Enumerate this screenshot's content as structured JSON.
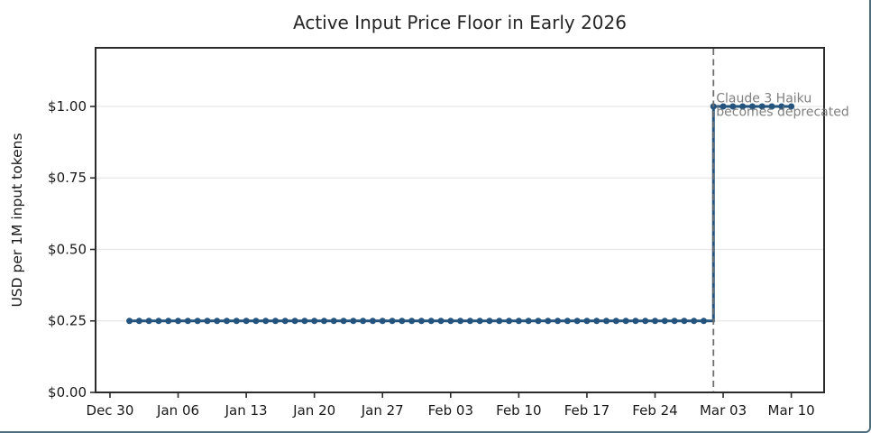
{
  "chart_data": {
    "type": "line",
    "subtype": "step-post",
    "title": "Active Input Price Floor in Early 2026",
    "xlabel": "",
    "ylabel": "USD per 1M input tokens",
    "grid": "horizontal-only",
    "legend": "none",
    "x_axis": {
      "day_zero_label": "Dec 30",
      "tick_days": [
        0,
        7,
        14,
        21,
        28,
        35,
        42,
        49,
        56,
        63,
        70
      ],
      "tick_labels": [
        "Dec 30",
        "Jan 06",
        "Jan 13",
        "Jan 20",
        "Jan 27",
        "Feb 03",
        "Feb 10",
        "Feb 17",
        "Feb 24",
        "Mar 03",
        "Mar 10"
      ],
      "xlim_days": [
        -1.48,
        73.37
      ]
    },
    "y_axis": {
      "tick_values": [
        0,
        0.25,
        0.5,
        0.75,
        1.0
      ],
      "tick_labels": [
        "$0.00",
        "$0.25",
        "$0.50",
        "$0.75",
        "$1.00"
      ],
      "ylim": [
        0,
        1.205
      ]
    },
    "series": [
      {
        "name": "active-input-price-floor",
        "frequency": "daily",
        "first_point_day": 2,
        "step": "post",
        "values": [
          0.25,
          0.25,
          0.25,
          0.25,
          0.25,
          0.25,
          0.25,
          0.25,
          0.25,
          0.25,
          0.25,
          0.25,
          0.25,
          0.25,
          0.25,
          0.25,
          0.25,
          0.25,
          0.25,
          0.25,
          0.25,
          0.25,
          0.25,
          0.25,
          0.25,
          0.25,
          0.25,
          0.25,
          0.25,
          0.25,
          0.25,
          0.25,
          0.25,
          0.25,
          0.25,
          0.25,
          0.25,
          0.25,
          0.25,
          0.25,
          0.25,
          0.25,
          0.25,
          0.25,
          0.25,
          0.25,
          0.25,
          0.25,
          0.25,
          0.25,
          0.25,
          0.25,
          0.25,
          0.25,
          0.25,
          0.25,
          0.25,
          0.25,
          0.25,
          0.25,
          1.0,
          1.0,
          1.0,
          1.0,
          1.0,
          1.0,
          1.0,
          1.0,
          1.0
        ]
      }
    ],
    "segments_summary": [
      {
        "from_label": "Jan 01",
        "to_label": "Mar 01",
        "value": 0.25
      },
      {
        "from_label": "Mar 02",
        "to_label": "Mar 10",
        "value": 1.0
      }
    ],
    "annotation": {
      "line1": "Claude 3 Haiku",
      "line2": "becomes deprecated",
      "event_day": 62,
      "line_style": "dashed-vertical"
    },
    "colors": {
      "series_line": "#24547e",
      "marker": "#24547e",
      "dashed_event_line": "#6e6e6e",
      "annotation_text": "#7f7f7f",
      "gridline": "#e6e6e6",
      "spine": "#2b2b2b",
      "tick_text": "#1a1a1a",
      "title_text": "#262626",
      "figure_border": "#4e6e7e"
    }
  }
}
